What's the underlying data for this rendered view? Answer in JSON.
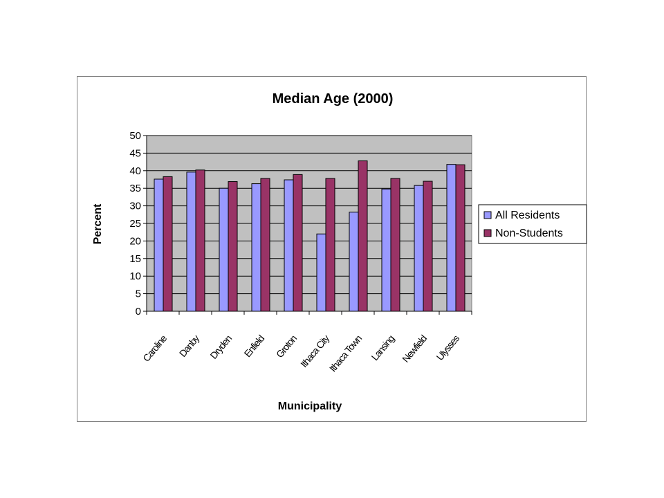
{
  "chart_data": {
    "type": "bar",
    "title": "Median Age (2000)",
    "xlabel": "Municipality",
    "ylabel": "Percent",
    "ylim": [
      0,
      50
    ],
    "yticks": [
      0,
      5,
      10,
      15,
      20,
      25,
      30,
      35,
      40,
      45,
      50
    ],
    "grid": true,
    "legend_position": "right",
    "categories": [
      "Caroline",
      "Danby",
      "Dryden",
      "Enfield",
      "Groton",
      "Ithaca City",
      "Ithaca Town",
      "Lansing",
      "Newfield",
      "Ulysses"
    ],
    "series": [
      {
        "name": "All Residents",
        "color": "#9999ff",
        "values": [
          37.6,
          39.6,
          35.0,
          36.3,
          37.4,
          22.0,
          28.2,
          34.8,
          35.8,
          41.8
        ]
      },
      {
        "name": "Non-Students",
        "color": "#993366",
        "values": [
          38.3,
          40.2,
          36.9,
          37.8,
          38.9,
          37.8,
          42.8,
          37.8,
          37.0,
          41.7
        ]
      }
    ],
    "plot_background": "#c0c0c0"
  }
}
